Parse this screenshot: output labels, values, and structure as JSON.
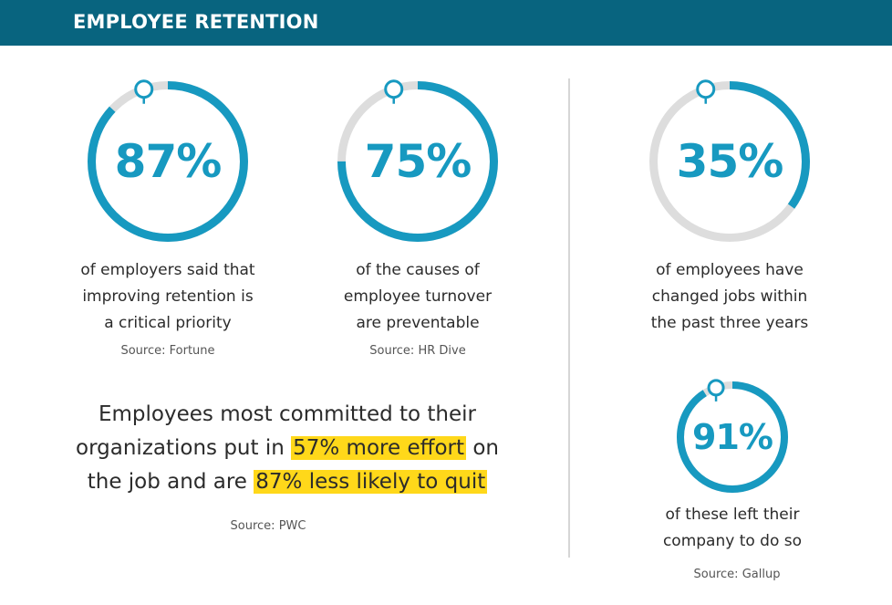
{
  "header": {
    "title": "EMPLOYEE RETENTION"
  },
  "colors": {
    "header_bg": "#08647f",
    "accent": "#1799c0",
    "track": "#dddddd",
    "highlight": "#ffd81a"
  },
  "stats": [
    {
      "value": "87%",
      "percent": 87,
      "caption": [
        "of employers said that",
        "improving retention is",
        "a critical priority"
      ],
      "source": "Source: Fortune"
    },
    {
      "value": "75%",
      "percent": 75,
      "caption": [
        "of the causes of",
        "employee turnover",
        "are preventable"
      ],
      "source": "Source: HR Dive"
    },
    {
      "value": "35%",
      "percent": 35,
      "caption": [
        "of employees have",
        "changed jobs within",
        "the past three years"
      ]
    },
    {
      "value": "91%",
      "percent": 91,
      "caption": [
        "of these left their",
        "company to do so"
      ],
      "source": "Source: Gallup"
    }
  ],
  "quote": {
    "line1": "Employees most committed to their",
    "line2_pre": "organizations put in",
    "line2_highlight": "57% more effort",
    "line2_post": "on",
    "line3_pre": "the job and are",
    "line3_highlight": "87% less likely to quit",
    "source": "Source: PWC"
  }
}
